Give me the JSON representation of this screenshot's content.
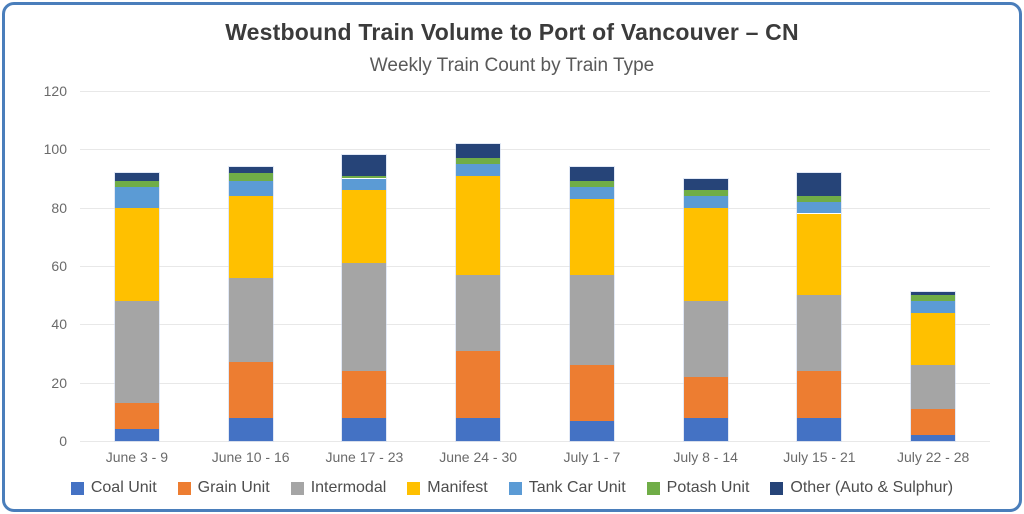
{
  "chart_data": {
    "type": "bar",
    "stacked": true,
    "title": "Westbound Train Volume to Port of Vancouver – CN",
    "subtitle": "Weekly Train Count by Train Type",
    "categories": [
      "June 3 - 9",
      "June 10 - 16",
      "June 17 - 23",
      "June 24 - 30",
      "July 1 - 7",
      "July 8 - 14",
      "July 15 - 21",
      "July 22 - 28"
    ],
    "series": [
      {
        "name": "Coal Unit",
        "color": "#4472c4",
        "values": [
          4,
          8,
          8,
          8,
          7,
          8,
          8,
          2
        ]
      },
      {
        "name": "Grain Unit",
        "color": "#ed7d31",
        "values": [
          9,
          19,
          16,
          23,
          19,
          14,
          16,
          9
        ]
      },
      {
        "name": "Intermodal",
        "color": "#a5a5a5",
        "values": [
          35,
          29,
          37,
          26,
          31,
          26,
          26,
          15
        ]
      },
      {
        "name": "Manifest",
        "color": "#ffc000",
        "values": [
          32,
          28,
          25,
          34,
          26,
          32,
          28,
          18
        ]
      },
      {
        "name": "Tank Car Unit",
        "color": "#5b9bd5",
        "values": [
          7,
          5,
          4,
          4,
          4,
          4,
          4,
          4
        ]
      },
      {
        "name": "Potash Unit",
        "color": "#70ad47",
        "values": [
          2,
          3,
          1,
          2,
          2,
          2,
          2,
          2
        ]
      },
      {
        "name": "Other (Auto & Sulphur)",
        "color": "#264478",
        "values": [
          3,
          2,
          7,
          5,
          5,
          4,
          8,
          1
        ]
      }
    ],
    "totals": [
      92,
      94,
      98,
      102,
      94,
      90,
      92,
      51
    ],
    "ylim": [
      0,
      120
    ],
    "ytick_step": 20,
    "yticks": [
      "0",
      "20",
      "40",
      "60",
      "80",
      "100",
      "120"
    ],
    "grid": true,
    "legend_position": "bottom",
    "accent_border_color": "#4a7ebb"
  }
}
